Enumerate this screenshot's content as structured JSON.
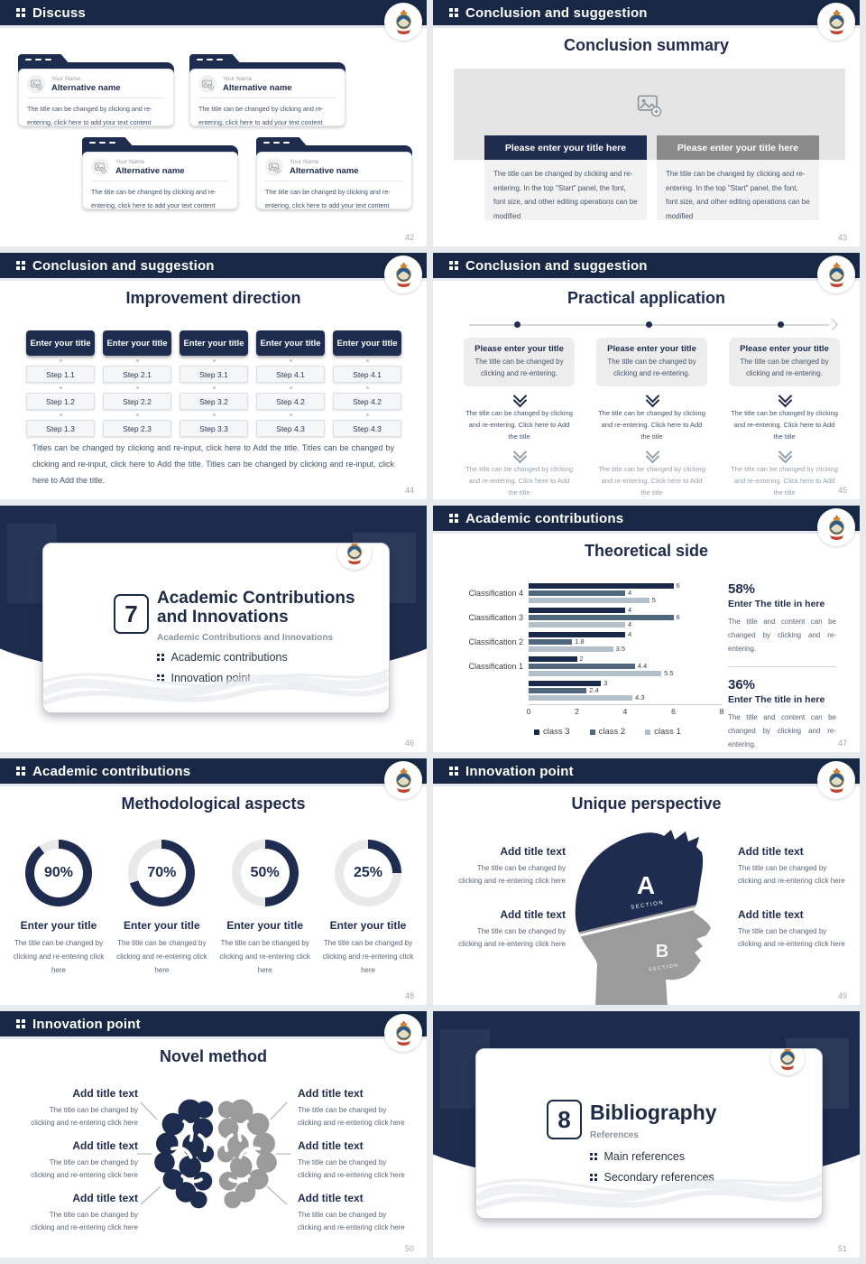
{
  "colors": {
    "navy_header": "#182743",
    "navy": "#1e2c4f",
    "slate": "#51677e",
    "light_blue": "#b3bfca",
    "gray_bar": "#8a8a8a",
    "panel_gray": "#e4e4e4",
    "box_gray": "#f2f2f2",
    "body_text": "#44546a",
    "page_bg": "#e9eaec"
  },
  "slides": {
    "discuss": {
      "header": "Discuss",
      "page": "42",
      "card": {
        "name_label": "Your Name",
        "title": "Alternative name",
        "body": "The title can be changed by clicking and re-entering, click here to add your text content"
      }
    },
    "summary": {
      "header": "Conclusion and suggestion",
      "title": "Conclusion summary",
      "page": "43",
      "col_navy_title": "Please enter your title here",
      "col_gray_title": "Please enter your title here",
      "body": "The title can be changed by clicking and re-entering. In the top \"Start\" panel, the font, font size, and other editing operations can be modified"
    },
    "improvement": {
      "header": "Conclusion and suggestion",
      "title": "Improvement direction",
      "page": "44",
      "col_title": "Enter your title",
      "cols": [
        [
          "Step 1.1",
          "Step 1.2",
          "Step 1.3"
        ],
        [
          "Step 2.1",
          "Step 2.2",
          "Step 2.3"
        ],
        [
          "Step 3.1",
          "Step 3.2",
          "Step 3.3"
        ],
        [
          "Step 4.1",
          "Step 4.2",
          "Step 4.3"
        ],
        [
          "Step 4.1",
          "Step 4.2",
          "Step 4.3"
        ]
      ],
      "note": "Titles can be changed by clicking and re-input, click here to Add the title. Titles can be changed by clicking and re-input, click here to Add the title. Titles can be changed by clicking and re-input, click here to Add the title."
    },
    "practical": {
      "header": "Conclusion and suggestion",
      "title": "Practical application",
      "page": "45",
      "box_title": "Please enter your title",
      "box_body": "The title can be changed by clicking and re-entering.",
      "step_text": "The title can be changed by clicking and re-entering. Click here to Add the title"
    },
    "section7": {
      "page": "46",
      "number": "7",
      "title_line1": "Academic Contributions",
      "title_line2": "and Innovations",
      "subtitle": "Academic Contributions and Innovations",
      "bullet1": "Academic contributions",
      "bullet2": "Innovation point"
    },
    "theoretical": {
      "header": "Academic contributions",
      "title": "Theoretical side",
      "page": "47",
      "stat1": {
        "pct": "58%",
        "title": "Enter The title in here",
        "body": "The title and content can be changed by clicking and re-entering."
      },
      "stat2": {
        "pct": "36%",
        "title": "Enter The title in here",
        "body": "The title and content can be changed by clicking and re-entering."
      }
    },
    "methodological": {
      "header": "Academic contributions",
      "title": "Methodological aspects",
      "page": "48",
      "item_title": "Enter your title",
      "item_body": "The title can be changed by clicking and re-entering click here"
    },
    "unique": {
      "header": "Innovation point",
      "title": "Unique perspective",
      "page": "49",
      "item_title": "Add title text",
      "item_body": "The title can be changed by clicking and re-entering click here",
      "section_a": "A",
      "section_b": "B",
      "section_word": "SECTION"
    },
    "novel": {
      "header": "Innovation point",
      "title": "Novel method",
      "page": "50",
      "item_title": "Add title text",
      "item_body": "The title can be changed by clicking and re-entering click here"
    },
    "section8": {
      "page": "51",
      "number": "8",
      "title": "Bibliography",
      "subtitle": "References",
      "bullet1": "Main references",
      "bullet2": "Secondary references"
    }
  },
  "chart_data": [
    {
      "type": "bar",
      "orientation": "horizontal",
      "title": "Theoretical side",
      "categories": [
        "Classification 4",
        "Classification 3",
        "Classification 2",
        "Classification 1",
        ""
      ],
      "series": [
        {
          "name": "class 3",
          "color": "#1b2a4a",
          "values": [
            6,
            4,
            4,
            2,
            3
          ]
        },
        {
          "name": "class 2",
          "color": "#51677e",
          "values": [
            4,
            6,
            1.8,
            4.4,
            2.4
          ]
        },
        {
          "name": "class 1",
          "color": "#b3bfca",
          "values": [
            5,
            4,
            3.5,
            5.5,
            4.3
          ]
        }
      ],
      "xlim": [
        0,
        8
      ],
      "xticks": [
        0,
        2,
        4,
        6,
        8
      ],
      "legend_position": "bottom",
      "value_labels": true,
      "grid": false
    },
    {
      "type": "donut",
      "labels": [
        "90%",
        "70%",
        "50%",
        "25%"
      ],
      "values": [
        90,
        70,
        50,
        25
      ],
      "color": "#1e2c4f",
      "track": "#e9e9e9",
      "start": "top",
      "direction": "clockwise"
    }
  ]
}
